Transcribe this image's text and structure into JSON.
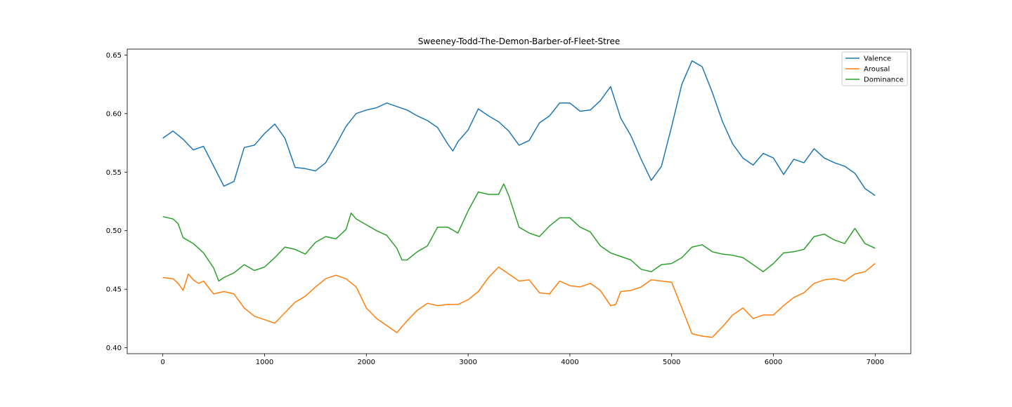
{
  "chart_data": {
    "type": "line",
    "title": "Sweeney-Todd-The-Demon-Barber-of-Fleet-Stree",
    "xlabel": "",
    "ylabel": "",
    "xlim": [
      -350,
      7350
    ],
    "ylim": [
      0.395,
      0.655
    ],
    "x_ticks": [
      0,
      1000,
      2000,
      3000,
      4000,
      5000,
      6000,
      7000
    ],
    "x_tick_labels": [
      "0",
      "1000",
      "2000",
      "3000",
      "4000",
      "5000",
      "6000",
      "7000"
    ],
    "y_ticks": [
      0.4,
      0.45,
      0.5,
      0.55,
      0.6,
      0.65
    ],
    "y_tick_labels": [
      "0.40",
      "0.45",
      "0.50",
      "0.55",
      "0.60",
      "0.65"
    ],
    "grid": false,
    "legend_position": "top-right",
    "series": [
      {
        "name": "Valence",
        "color": "#1f77b4",
        "x": [
          0,
          100,
          200,
          300,
          400,
          500,
          600,
          700,
          800,
          900,
          1000,
          1100,
          1200,
          1300,
          1400,
          1500,
          1600,
          1700,
          1800,
          1900,
          2000,
          2100,
          2200,
          2300,
          2400,
          2500,
          2600,
          2700,
          2800,
          2850,
          2900,
          3000,
          3100,
          3200,
          3300,
          3400,
          3500,
          3600,
          3700,
          3800,
          3900,
          4000,
          4100,
          4200,
          4300,
          4400,
          4500,
          4600,
          4700,
          4800,
          4900,
          5000,
          5100,
          5200,
          5300,
          5400,
          5500,
          5600,
          5700,
          5800,
          5900,
          6000,
          6100,
          6200,
          6300,
          6400,
          6500,
          6600,
          6700,
          6800,
          6900,
          7000
        ],
        "values": [
          0.579,
          0.585,
          0.578,
          0.569,
          0.572,
          0.555,
          0.538,
          0.542,
          0.571,
          0.573,
          0.583,
          0.591,
          0.579,
          0.554,
          0.553,
          0.551,
          0.558,
          0.573,
          0.589,
          0.6,
          0.603,
          0.605,
          0.609,
          0.606,
          0.603,
          0.598,
          0.594,
          0.588,
          0.574,
          0.568,
          0.576,
          0.586,
          0.604,
          0.598,
          0.593,
          0.585,
          0.573,
          0.577,
          0.592,
          0.598,
          0.609,
          0.609,
          0.602,
          0.603,
          0.611,
          0.623,
          0.596,
          0.581,
          0.561,
          0.543,
          0.555,
          0.589,
          0.625,
          0.645,
          0.64,
          0.618,
          0.593,
          0.574,
          0.562,
          0.556,
          0.566,
          0.562,
          0.548,
          0.561,
          0.558,
          0.57,
          0.562,
          0.558,
          0.555,
          0.549,
          0.536,
          0.53
        ]
      },
      {
        "name": "Arousal",
        "color": "#ff7f0e",
        "x": [
          0,
          100,
          150,
          200,
          250,
          300,
          350,
          400,
          500,
          600,
          700,
          800,
          900,
          1000,
          1100,
          1200,
          1300,
          1400,
          1500,
          1600,
          1700,
          1800,
          1900,
          2000,
          2100,
          2200,
          2300,
          2400,
          2500,
          2600,
          2700,
          2800,
          2900,
          3000,
          3100,
          3200,
          3300,
          3400,
          3500,
          3600,
          3700,
          3800,
          3900,
          4000,
          4100,
          4200,
          4300,
          4400,
          4450,
          4500,
          4600,
          4700,
          4800,
          4900,
          5000,
          5100,
          5200,
          5300,
          5400,
          5500,
          5600,
          5700,
          5800,
          5900,
          6000,
          6100,
          6200,
          6300,
          6400,
          6500,
          6600,
          6700,
          6800,
          6900,
          7000
        ],
        "values": [
          0.46,
          0.459,
          0.455,
          0.449,
          0.463,
          0.458,
          0.455,
          0.457,
          0.446,
          0.448,
          0.446,
          0.434,
          0.427,
          0.424,
          0.421,
          0.43,
          0.439,
          0.444,
          0.452,
          0.459,
          0.462,
          0.459,
          0.452,
          0.434,
          0.425,
          0.419,
          0.413,
          0.423,
          0.432,
          0.438,
          0.436,
          0.437,
          0.437,
          0.441,
          0.448,
          0.46,
          0.469,
          0.463,
          0.457,
          0.458,
          0.447,
          0.446,
          0.457,
          0.453,
          0.452,
          0.455,
          0.449,
          0.436,
          0.437,
          0.448,
          0.449,
          0.452,
          0.458,
          0.457,
          0.456,
          0.434,
          0.412,
          0.41,
          0.409,
          0.418,
          0.428,
          0.434,
          0.425,
          0.428,
          0.428,
          0.436,
          0.443,
          0.447,
          0.455,
          0.458,
          0.459,
          0.457,
          0.463,
          0.465,
          0.472
        ]
      },
      {
        "name": "Dominance",
        "color": "#2ca02c",
        "x": [
          0,
          100,
          150,
          200,
          300,
          400,
          500,
          550,
          600,
          700,
          800,
          900,
          1000,
          1100,
          1200,
          1300,
          1400,
          1500,
          1600,
          1700,
          1800,
          1850,
          1900,
          2000,
          2100,
          2200,
          2300,
          2350,
          2400,
          2500,
          2600,
          2700,
          2800,
          2900,
          3000,
          3100,
          3200,
          3300,
          3350,
          3400,
          3500,
          3600,
          3700,
          3800,
          3900,
          4000,
          4100,
          4200,
          4300,
          4400,
          4500,
          4600,
          4700,
          4800,
          4900,
          5000,
          5100,
          5200,
          5300,
          5400,
          5500,
          5600,
          5700,
          5800,
          5900,
          6000,
          6100,
          6200,
          6300,
          6400,
          6500,
          6600,
          6700,
          6800,
          6900,
          7000
        ],
        "values": [
          0.512,
          0.51,
          0.506,
          0.494,
          0.489,
          0.481,
          0.468,
          0.457,
          0.46,
          0.464,
          0.471,
          0.466,
          0.469,
          0.477,
          0.486,
          0.484,
          0.48,
          0.49,
          0.495,
          0.493,
          0.501,
          0.515,
          0.51,
          0.505,
          0.5,
          0.496,
          0.485,
          0.475,
          0.475,
          0.482,
          0.487,
          0.503,
          0.503,
          0.498,
          0.517,
          0.533,
          0.531,
          0.531,
          0.54,
          0.53,
          0.503,
          0.498,
          0.495,
          0.504,
          0.511,
          0.511,
          0.503,
          0.499,
          0.487,
          0.481,
          0.478,
          0.475,
          0.467,
          0.465,
          0.471,
          0.472,
          0.477,
          0.486,
          0.488,
          0.482,
          0.48,
          0.479,
          0.477,
          0.471,
          0.465,
          0.472,
          0.481,
          0.482,
          0.484,
          0.495,
          0.497,
          0.492,
          0.489,
          0.502,
          0.489,
          0.485
        ]
      }
    ]
  }
}
